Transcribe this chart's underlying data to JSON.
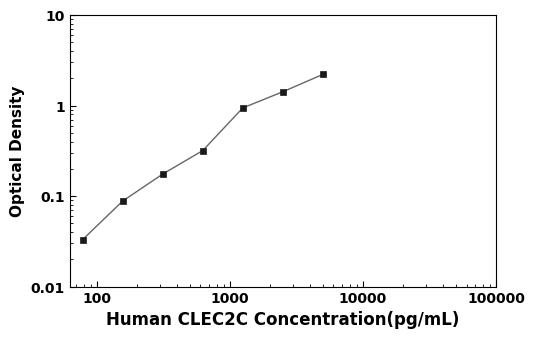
{
  "x": [
    78.13,
    156.25,
    312.5,
    625.0,
    1250.0,
    2500.0,
    5000.0
  ],
  "y": [
    0.033,
    0.088,
    0.175,
    0.318,
    0.942,
    1.42,
    2.21
  ],
  "xlabel": "Human CLEC2C Concentration(pg/mL)",
  "ylabel": "Optical Density",
  "xlim": [
    62.5,
    100000
  ],
  "ylim": [
    0.01,
    10
  ],
  "line_color": "#666666",
  "marker_color": "#1a1a1a",
  "marker": "s",
  "marker_size": 5,
  "line_width": 1.0,
  "xlabel_fontsize": 12,
  "ylabel_fontsize": 11,
  "tick_fontsize": 10,
  "background_color": "#ffffff",
  "xticks": [
    100,
    1000,
    10000,
    100000
  ],
  "yticks": [
    0.01,
    0.1,
    1,
    10
  ]
}
